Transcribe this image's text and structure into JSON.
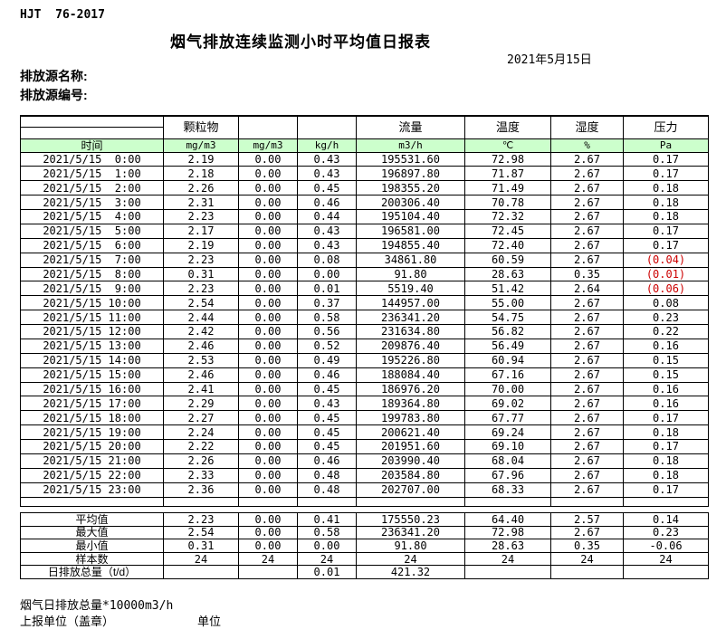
{
  "page": {
    "doc_code": "HJT  76-2017",
    "title": "烟气排放连续监测小时平均值日报表",
    "date": "2021年5月15日",
    "source_name_label": "排放源名称:",
    "source_id_label": "排放源编号:"
  },
  "colors": {
    "header_green": "#ccffcc",
    "alarm_red": "#cc0000",
    "grid": "#000000"
  },
  "table": {
    "group_labels": [
      "",
      "颗粒物",
      "",
      "",
      "流量",
      "温度",
      "湿度",
      "压力"
    ],
    "unit_labels": [
      "时间",
      "mg/m3",
      "mg/m3",
      "kg/h",
      "m3/h",
      "℃",
      "%",
      "Pa"
    ],
    "rows": [
      {
        "time": "2021/5/15  0:00",
        "cells": [
          "2.19",
          "0.00",
          "0.43",
          "195531.60",
          "72.98",
          "2.67",
          "0.17"
        ],
        "red": []
      },
      {
        "time": "2021/5/15  1:00",
        "cells": [
          "2.18",
          "0.00",
          "0.43",
          "196897.80",
          "71.87",
          "2.67",
          "0.17"
        ],
        "red": []
      },
      {
        "time": "2021/5/15  2:00",
        "cells": [
          "2.26",
          "0.00",
          "0.45",
          "198355.20",
          "71.49",
          "2.67",
          "0.18"
        ],
        "red": []
      },
      {
        "time": "2021/5/15  3:00",
        "cells": [
          "2.31",
          "0.00",
          "0.46",
          "200306.40",
          "70.78",
          "2.67",
          "0.18"
        ],
        "red": []
      },
      {
        "time": "2021/5/15  4:00",
        "cells": [
          "2.23",
          "0.00",
          "0.44",
          "195104.40",
          "72.32",
          "2.67",
          "0.18"
        ],
        "red": []
      },
      {
        "time": "2021/5/15  5:00",
        "cells": [
          "2.17",
          "0.00",
          "0.43",
          "196581.00",
          "72.45",
          "2.67",
          "0.17"
        ],
        "red": []
      },
      {
        "time": "2021/5/15  6:00",
        "cells": [
          "2.19",
          "0.00",
          "0.43",
          "194855.40",
          "72.40",
          "2.67",
          "0.17"
        ],
        "red": []
      },
      {
        "time": "2021/5/15  7:00",
        "cells": [
          "2.23",
          "0.00",
          "0.08",
          "34861.80",
          "60.59",
          "2.67",
          "(0.04)"
        ],
        "red": [
          6
        ]
      },
      {
        "time": "2021/5/15  8:00",
        "cells": [
          "0.31",
          "0.00",
          "0.00",
          "91.80",
          "28.63",
          "0.35",
          "(0.01)"
        ],
        "red": [
          6
        ]
      },
      {
        "time": "2021/5/15  9:00",
        "cells": [
          "2.23",
          "0.00",
          "0.01",
          "5519.40",
          "51.42",
          "2.64",
          "(0.06)"
        ],
        "red": [
          6
        ]
      },
      {
        "time": "2021/5/15 10:00",
        "cells": [
          "2.54",
          "0.00",
          "0.37",
          "144957.00",
          "55.00",
          "2.67",
          "0.08"
        ],
        "red": []
      },
      {
        "time": "2021/5/15 11:00",
        "cells": [
          "2.44",
          "0.00",
          "0.58",
          "236341.20",
          "54.75",
          "2.67",
          "0.23"
        ],
        "red": []
      },
      {
        "time": "2021/5/15 12:00",
        "cells": [
          "2.42",
          "0.00",
          "0.56",
          "231634.80",
          "56.82",
          "2.67",
          "0.22"
        ],
        "red": []
      },
      {
        "time": "2021/5/15 13:00",
        "cells": [
          "2.46",
          "0.00",
          "0.52",
          "209876.40",
          "56.49",
          "2.67",
          "0.16"
        ],
        "red": []
      },
      {
        "time": "2021/5/15 14:00",
        "cells": [
          "2.53",
          "0.00",
          "0.49",
          "195226.80",
          "60.94",
          "2.67",
          "0.15"
        ],
        "red": []
      },
      {
        "time": "2021/5/15 15:00",
        "cells": [
          "2.46",
          "0.00",
          "0.46",
          "188084.40",
          "67.16",
          "2.67",
          "0.15"
        ],
        "red": []
      },
      {
        "time": "2021/5/15 16:00",
        "cells": [
          "2.41",
          "0.00",
          "0.45",
          "186976.20",
          "70.00",
          "2.67",
          "0.16"
        ],
        "red": []
      },
      {
        "time": "2021/5/15 17:00",
        "cells": [
          "2.29",
          "0.00",
          "0.43",
          "189364.80",
          "69.02",
          "2.67",
          "0.16"
        ],
        "red": []
      },
      {
        "time": "2021/5/15 18:00",
        "cells": [
          "2.27",
          "0.00",
          "0.45",
          "199783.80",
          "67.77",
          "2.67",
          "0.17"
        ],
        "red": []
      },
      {
        "time": "2021/5/15 19:00",
        "cells": [
          "2.24",
          "0.00",
          "0.45",
          "200621.40",
          "69.24",
          "2.67",
          "0.18"
        ],
        "red": []
      },
      {
        "time": "2021/5/15 20:00",
        "cells": [
          "2.22",
          "0.00",
          "0.45",
          "201951.60",
          "69.10",
          "2.67",
          "0.17"
        ],
        "red": []
      },
      {
        "time": "2021/5/15 21:00",
        "cells": [
          "2.26",
          "0.00",
          "0.46",
          "203990.40",
          "68.04",
          "2.67",
          "0.18"
        ],
        "red": []
      },
      {
        "time": "2021/5/15 22:00",
        "cells": [
          "2.33",
          "0.00",
          "0.48",
          "203584.80",
          "67.96",
          "2.67",
          "0.18"
        ],
        "red": []
      },
      {
        "time": "2021/5/15 23:00",
        "cells": [
          "2.36",
          "0.00",
          "0.48",
          "202707.00",
          "68.33",
          "2.67",
          "0.17"
        ],
        "red": []
      }
    ]
  },
  "summary": {
    "rows": [
      {
        "label": "平均值",
        "cells": [
          "2.23",
          "0.00",
          "0.41",
          "175550.23",
          "64.40",
          "2.57",
          "0.14"
        ]
      },
      {
        "label": "最大值",
        "cells": [
          "2.54",
          "0.00",
          "0.58",
          "236341.20",
          "72.98",
          "2.67",
          "0.23"
        ]
      },
      {
        "label": "最小值",
        "cells": [
          "0.31",
          "0.00",
          "0.00",
          "91.80",
          "28.63",
          "0.35",
          "-0.06"
        ]
      },
      {
        "label": "样本数",
        "cells": [
          "24",
          "24",
          "24",
          "24",
          "24",
          "24",
          "24"
        ]
      },
      {
        "label": "日排放总量（t/d）",
        "cells": [
          "",
          "",
          "0.01",
          "421.32",
          "",
          "",
          ""
        ]
      }
    ]
  },
  "footer": {
    "note": "烟气日排放总量*10000m3/h",
    "report_unit_label": "上报单位（盖章）",
    "unit_label": "单位"
  }
}
